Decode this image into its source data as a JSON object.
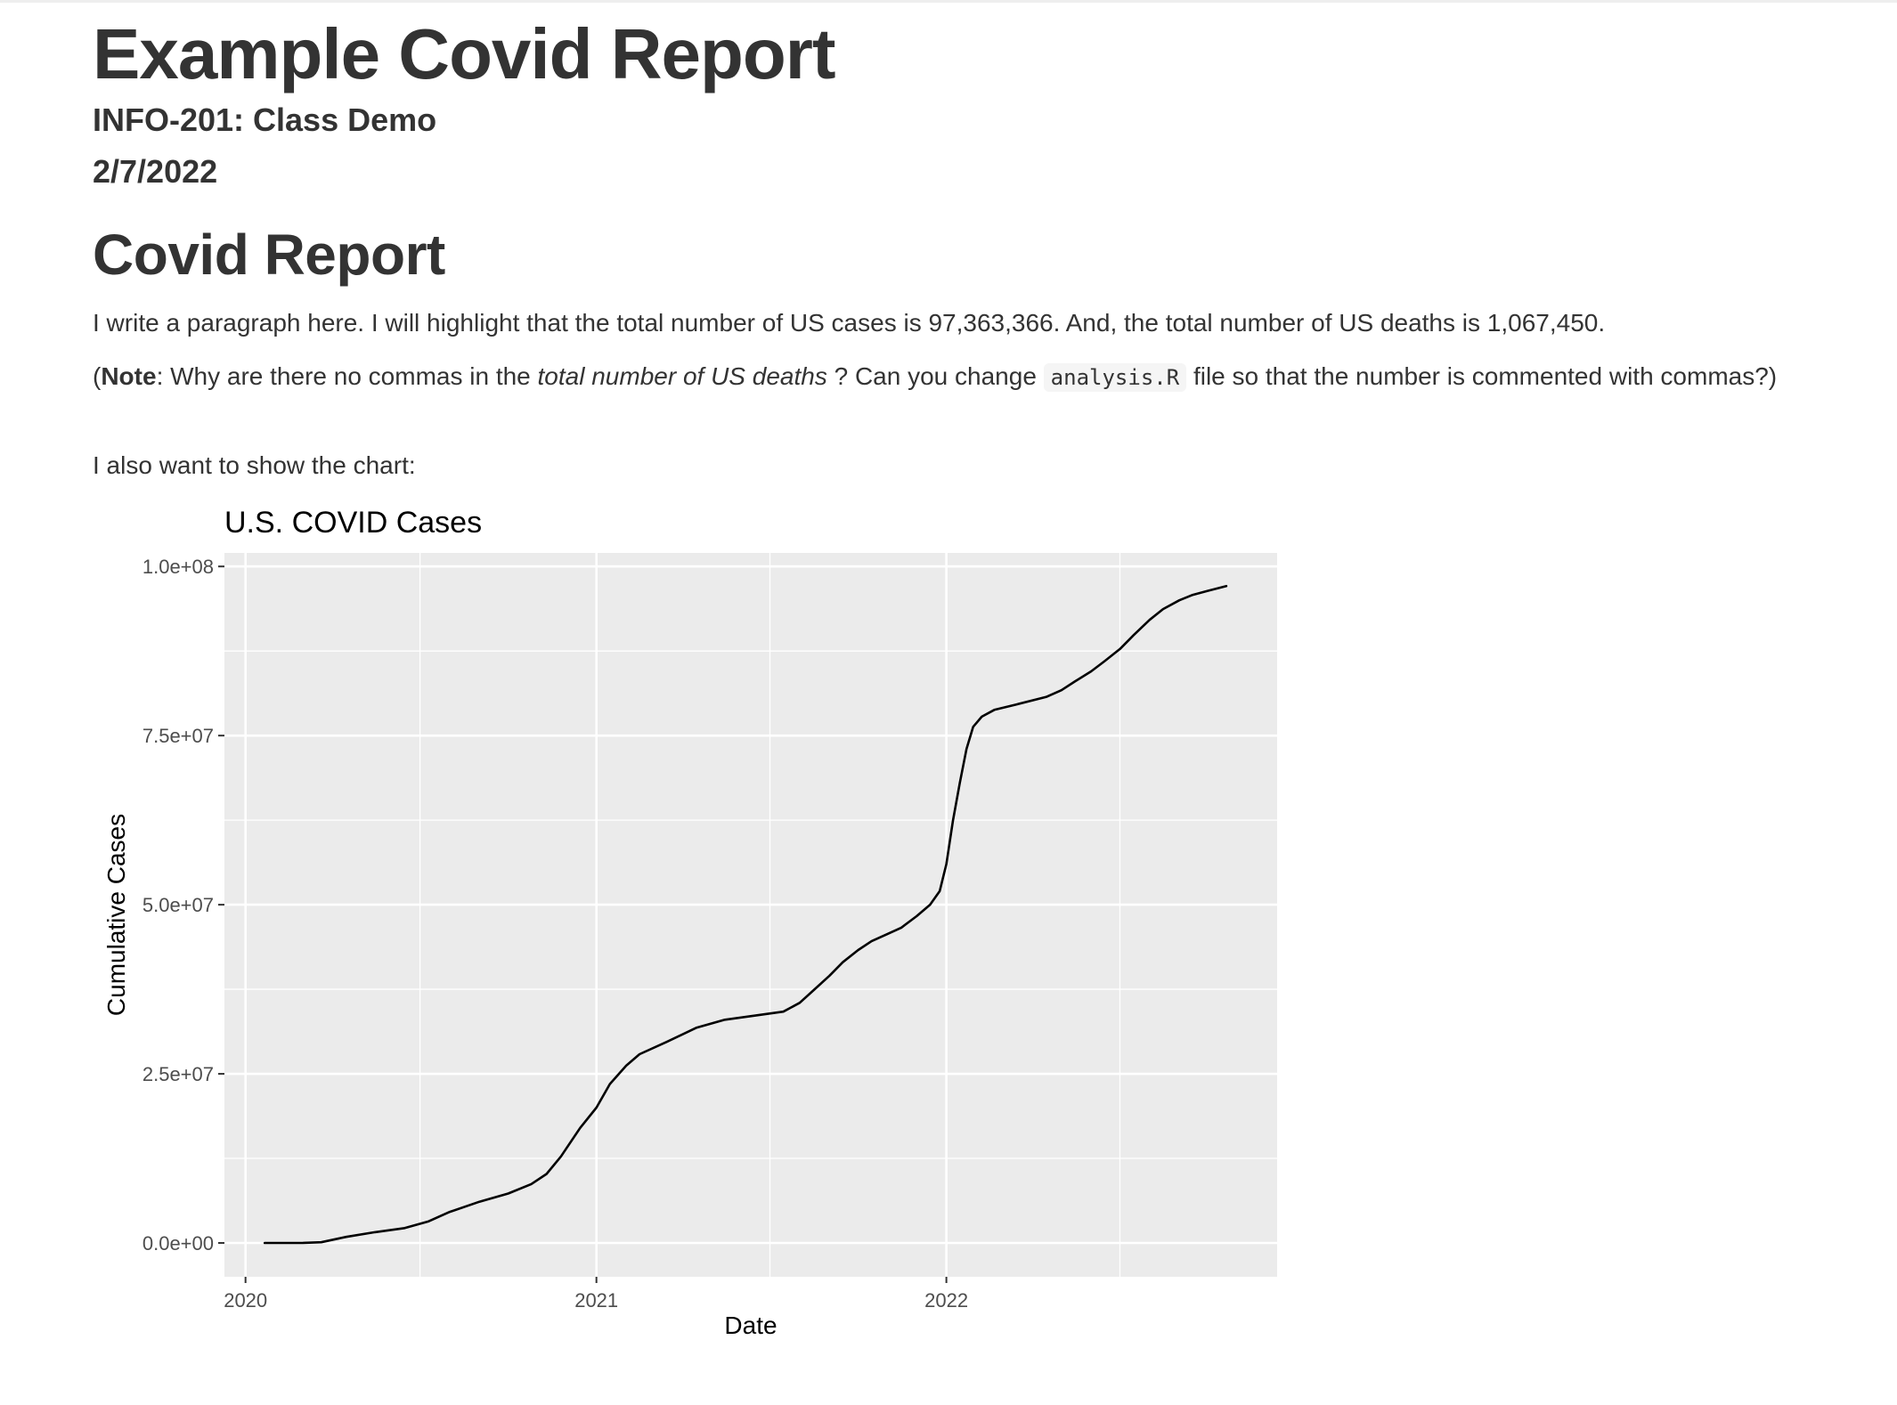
{
  "report": {
    "title": "Example Covid Report",
    "subtitle": "INFO-201: Class Demo",
    "date": "2/7/2022",
    "section_heading": "Covid Report",
    "paragraph1": "I write a paragraph here. I will highlight that the total number of US cases is 97,363,366. And, the total number of US deaths is 1,067,450.",
    "note": {
      "open_paren": "(",
      "bold": "Note",
      "text_before_italic": ": Why are there no commas in the ",
      "italic": "total number of US deaths",
      "text_before_code": " ? Can you change ",
      "code": "analysis.R",
      "text_after_code": " file so that the number is commented with commas?)"
    },
    "paragraph3": "I also want to show the chart:"
  },
  "chart_data": {
    "type": "line",
    "title": "U.S. COVID Cases",
    "xlabel": "Date",
    "ylabel": "Cumulative Cases",
    "x_tick_labels": [
      "2020",
      "2021",
      "2022"
    ],
    "y_tick_labels": [
      "0.0e+00",
      "2.5e+07",
      "5.0e+07",
      "7.5e+07",
      "1.0e+08"
    ],
    "y_ticks": [
      0,
      25000000,
      50000000,
      75000000,
      100000000
    ],
    "xlim": [
      "2019-12-10",
      "2022-12-12"
    ],
    "ylim": [
      -5000000,
      102000000
    ],
    "grid": true,
    "colors": {
      "panel": "#ebebeb",
      "grid": "#ffffff",
      "line": "#000000",
      "text": "#4d4d4d"
    },
    "series": [
      {
        "x": [
          "2020-01-21",
          "2020-03-01",
          "2020-03-20",
          "2020-04-15",
          "2020-05-15",
          "2020-06-15",
          "2020-07-10",
          "2020-08-01",
          "2020-09-01",
          "2020-10-01",
          "2020-10-25",
          "2020-11-10",
          "2020-11-25",
          "2020-12-15",
          "2021-01-01",
          "2021-01-15",
          "2021-02-01",
          "2021-02-15",
          "2021-03-15",
          "2021-04-15",
          "2021-05-15",
          "2021-06-15",
          "2021-07-15",
          "2021-08-01",
          "2021-08-15",
          "2021-09-01",
          "2021-09-15",
          "2021-10-01",
          "2021-10-15",
          "2021-11-01",
          "2021-11-15",
          "2021-12-01",
          "2021-12-15",
          "2021-12-25",
          "2022-01-01",
          "2022-01-08",
          "2022-01-15",
          "2022-01-22",
          "2022-01-29",
          "2022-02-07",
          "2022-02-20",
          "2022-03-15",
          "2022-04-15",
          "2022-05-01",
          "2022-05-15",
          "2022-06-01",
          "2022-06-15",
          "2022-07-01",
          "2022-07-15",
          "2022-08-01",
          "2022-08-15",
          "2022-09-01",
          "2022-09-15",
          "2022-10-01",
          "2022-10-20"
        ],
        "y": [
          0,
          20000,
          100000,
          900000,
          1600000,
          2200000,
          3200000,
          4600000,
          6100000,
          7300000,
          8700000,
          10200000,
          12800000,
          17000000,
          20000000,
          23500000,
          26200000,
          27900000,
          29700000,
          31800000,
          33000000,
          33600000,
          34200000,
          35500000,
          37300000,
          39500000,
          41500000,
          43300000,
          44600000,
          45700000,
          46600000,
          48300000,
          50000000,
          52000000,
          56000000,
          62500000,
          68000000,
          73000000,
          76300000,
          77800000,
          78800000,
          79600000,
          80700000,
          81700000,
          83000000,
          84500000,
          86000000,
          87800000,
          89800000,
          92100000,
          93700000,
          95000000,
          95800000,
          96400000,
          97100000
        ]
      }
    ]
  }
}
